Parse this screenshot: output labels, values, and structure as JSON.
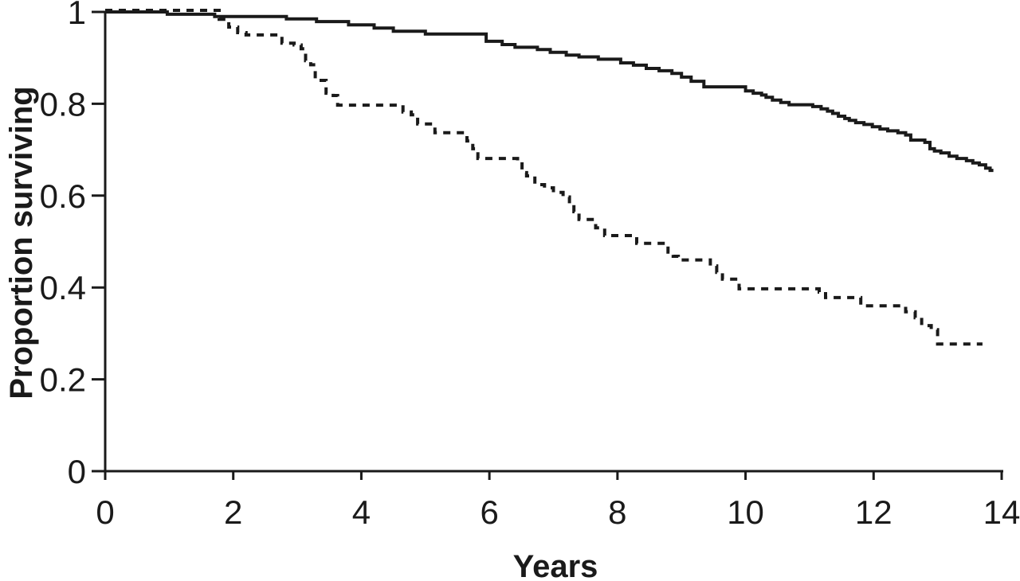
{
  "chart_data": {
    "type": "line",
    "subtype": "kaplan-meier-step",
    "title": "",
    "xlabel": "Years",
    "ylabel": "Proportion surviving",
    "xlim": [
      0,
      14
    ],
    "ylim": [
      0,
      1
    ],
    "xticks": [
      0,
      2,
      4,
      6,
      8,
      10,
      12,
      14
    ],
    "xtick_labels": [
      "0",
      "2",
      "4",
      "6",
      "8",
      "10",
      "12",
      "14"
    ],
    "yticks": [
      0,
      0.2,
      0.4,
      0.6,
      0.8,
      1
    ],
    "ytick_labels": [
      "0",
      "0.2",
      "0.4",
      "0.6",
      "0.8",
      "1"
    ],
    "grid": false,
    "legend_position": "none",
    "line_color": "#1a1a1a",
    "background_color": "#ffffff",
    "series": [
      {
        "name": "solid",
        "style": "solid",
        "points": [
          [
            0,
            1.0
          ],
          [
            0.97,
            0.995
          ],
          [
            1.71,
            0.99
          ],
          [
            2.83,
            0.985
          ],
          [
            3.3,
            0.979
          ],
          [
            3.8,
            0.972
          ],
          [
            4.2,
            0.965
          ],
          [
            4.5,
            0.958
          ],
          [
            5.0,
            0.952
          ],
          [
            5.95,
            0.936
          ],
          [
            6.2,
            0.929
          ],
          [
            6.4,
            0.923
          ],
          [
            6.75,
            0.918
          ],
          [
            6.95,
            0.912
          ],
          [
            7.2,
            0.906
          ],
          [
            7.4,
            0.902
          ],
          [
            7.7,
            0.897
          ],
          [
            8.05,
            0.889
          ],
          [
            8.25,
            0.884
          ],
          [
            8.45,
            0.877
          ],
          [
            8.65,
            0.872
          ],
          [
            8.85,
            0.866
          ],
          [
            9.0,
            0.858
          ],
          [
            9.15,
            0.849
          ],
          [
            9.35,
            0.837
          ],
          [
            10.0,
            0.828
          ],
          [
            10.12,
            0.823
          ],
          [
            10.25,
            0.819
          ],
          [
            10.32,
            0.814
          ],
          [
            10.42,
            0.808
          ],
          [
            10.55,
            0.803
          ],
          [
            10.68,
            0.798
          ],
          [
            11.05,
            0.794
          ],
          [
            11.18,
            0.789
          ],
          [
            11.28,
            0.784
          ],
          [
            11.36,
            0.779
          ],
          [
            11.45,
            0.773
          ],
          [
            11.55,
            0.768
          ],
          [
            11.62,
            0.764
          ],
          [
            11.72,
            0.759
          ],
          [
            11.85,
            0.755
          ],
          [
            11.98,
            0.75
          ],
          [
            12.1,
            0.745
          ],
          [
            12.22,
            0.741
          ],
          [
            12.38,
            0.737
          ],
          [
            12.5,
            0.732
          ],
          [
            12.58,
            0.721
          ],
          [
            12.8,
            0.716
          ],
          [
            12.88,
            0.702
          ],
          [
            12.95,
            0.697
          ],
          [
            13.05,
            0.693
          ],
          [
            13.18,
            0.686
          ],
          [
            13.3,
            0.681
          ],
          [
            13.45,
            0.676
          ],
          [
            13.55,
            0.671
          ],
          [
            13.65,
            0.667
          ],
          [
            13.75,
            0.66
          ],
          [
            13.82,
            0.655
          ],
          [
            13.87,
            0.655
          ]
        ]
      },
      {
        "name": "dashed",
        "style": "dashed",
        "points": [
          [
            0,
            1.0
          ],
          [
            1.78,
            0.984
          ],
          [
            1.93,
            0.967
          ],
          [
            2.07,
            0.955
          ],
          [
            2.2,
            0.95
          ],
          [
            2.76,
            0.932
          ],
          [
            2.95,
            0.928
          ],
          [
            3.06,
            0.92
          ],
          [
            3.13,
            0.894
          ],
          [
            3.21,
            0.885
          ],
          [
            3.28,
            0.851
          ],
          [
            3.45,
            0.823
          ],
          [
            3.56,
            0.818
          ],
          [
            3.63,
            0.797
          ],
          [
            4.65,
            0.782
          ],
          [
            4.78,
            0.776
          ],
          [
            4.88,
            0.756
          ],
          [
            5.15,
            0.737
          ],
          [
            5.65,
            0.719
          ],
          [
            5.74,
            0.702
          ],
          [
            5.82,
            0.681
          ],
          [
            6.44,
            0.676
          ],
          [
            6.51,
            0.65
          ],
          [
            6.58,
            0.643
          ],
          [
            6.71,
            0.624
          ],
          [
            6.86,
            0.617
          ],
          [
            7.0,
            0.607
          ],
          [
            7.15,
            0.597
          ],
          [
            7.25,
            0.582
          ],
          [
            7.32,
            0.565
          ],
          [
            7.4,
            0.548
          ],
          [
            7.66,
            0.53
          ],
          [
            7.8,
            0.513
          ],
          [
            8.3,
            0.496
          ],
          [
            8.79,
            0.477
          ],
          [
            8.87,
            0.468
          ],
          [
            8.95,
            0.46
          ],
          [
            9.45,
            0.447
          ],
          [
            9.55,
            0.433
          ],
          [
            9.64,
            0.418
          ],
          [
            9.9,
            0.397
          ],
          [
            11.15,
            0.39
          ],
          [
            11.25,
            0.378
          ],
          [
            11.8,
            0.36
          ],
          [
            12.5,
            0.347
          ],
          [
            12.65,
            0.334
          ],
          [
            12.75,
            0.317
          ],
          [
            12.9,
            0.308
          ],
          [
            13.0,
            0.277
          ],
          [
            13.7,
            0.277
          ]
        ]
      }
    ]
  }
}
